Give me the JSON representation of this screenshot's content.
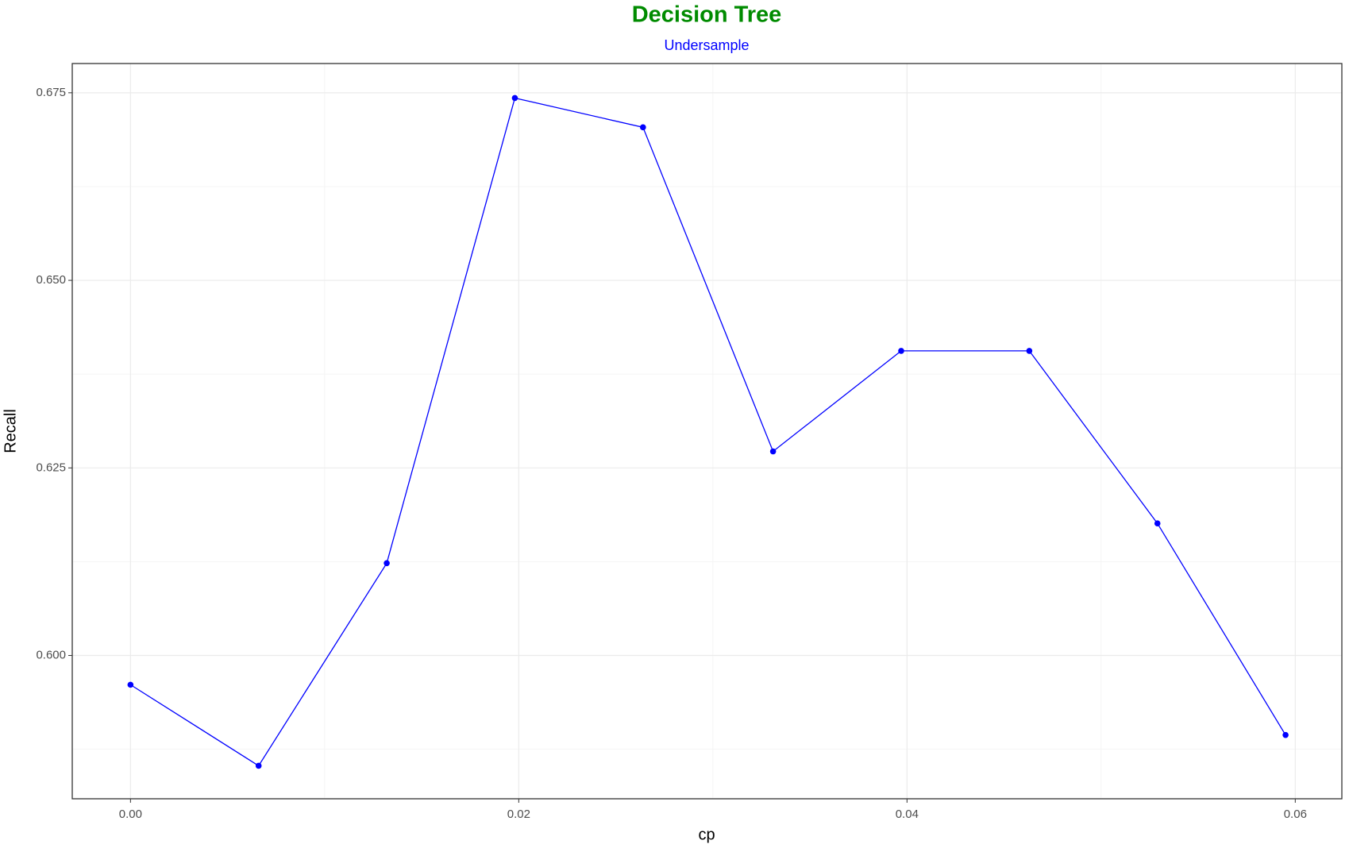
{
  "chart_data": {
    "type": "line",
    "title": "Decision Tree",
    "subtitle": "Undersample",
    "x_label": "cp",
    "y_label": "Recall",
    "x": [
      0,
      0.0066,
      0.0132,
      0.0198,
      0.0264,
      0.0331,
      0.0397,
      0.0463,
      0.0529,
      0.0595
    ],
    "series": [
      {
        "name": "Recall",
        "color": "#0000ff",
        "values": [
          0.5961,
          0.5853,
          0.6123,
          0.6743,
          0.6704,
          0.6272,
          0.6406,
          0.6406,
          0.6176,
          0.5894
        ]
      }
    ],
    "xlim": [
      -0.003,
      0.0624
    ],
    "ylim": [
      0.5809,
      0.6789
    ],
    "xticks": [
      {
        "value": 0,
        "label": "0.00"
      },
      {
        "value": 0.02,
        "label": "0.02"
      },
      {
        "value": 0.04,
        "label": "0.04"
      },
      {
        "value": 0.06,
        "label": "0.06"
      }
    ],
    "yticks": [
      {
        "value": 0.6,
        "label": "0.600"
      },
      {
        "value": 0.625,
        "label": "0.625"
      },
      {
        "value": 0.65,
        "label": "0.650"
      },
      {
        "value": 0.675,
        "label": "0.675"
      }
    ],
    "grid": true,
    "title_color": "#008b00",
    "subtitle_color": "#0000ff"
  }
}
